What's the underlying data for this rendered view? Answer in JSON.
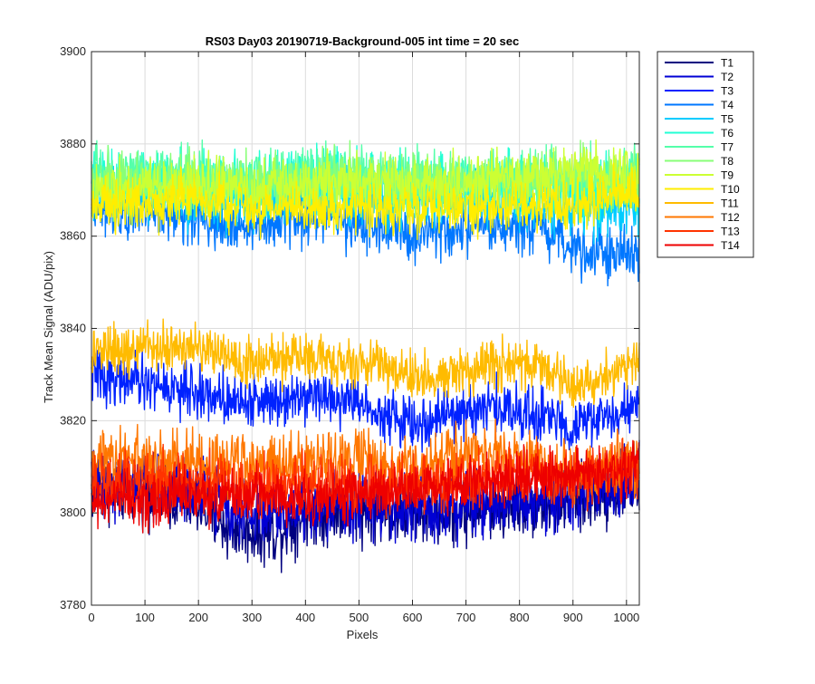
{
  "chart_data": {
    "type": "line",
    "title": "RS03 Day03 20190719-Background-005 int time = 20 sec",
    "xlabel": "Pixels",
    "ylabel": "Track Mean Signal (ADU/pix)",
    "xlim": [
      0,
      1024
    ],
    "ylim": [
      3780,
      3900
    ],
    "xticks": [
      0,
      100,
      200,
      300,
      400,
      500,
      600,
      700,
      800,
      900,
      1000
    ],
    "yticks": [
      3780,
      3800,
      3820,
      3840,
      3860,
      3880,
      3900
    ],
    "grid": true,
    "legend_position": "outside-top-right",
    "series": [
      {
        "name": "T1",
        "color": "#00007f",
        "noise": 3.5,
        "x": [
          0,
          100,
          200,
          250,
          300,
          350,
          400,
          500,
          600,
          700,
          800,
          900,
          1000,
          1024
        ],
        "y": [
          3805,
          3805,
          3802,
          3797,
          3796,
          3796,
          3800,
          3801,
          3800,
          3800,
          3802,
          3802,
          3806,
          3806
        ]
      },
      {
        "name": "T2",
        "color": "#0000d4",
        "noise": 3.5,
        "x": [
          0,
          100,
          200,
          300,
          400,
          500,
          600,
          700,
          800,
          900,
          1000,
          1024
        ],
        "y": [
          3806,
          3806,
          3805,
          3800,
          3801,
          3802,
          3801,
          3802,
          3803,
          3803,
          3807,
          3807
        ]
      },
      {
        "name": "T3",
        "color": "#0022ff",
        "noise": 2.8,
        "x": [
          0,
          100,
          200,
          300,
          400,
          500,
          600,
          700,
          750,
          800,
          900,
          1000,
          1024
        ],
        "y": [
          3830,
          3828,
          3826,
          3824,
          3826,
          3824,
          3819,
          3822,
          3823,
          3822,
          3819,
          3822,
          3823
        ]
      },
      {
        "name": "T4",
        "color": "#0077ff",
        "noise": 3.0,
        "x": [
          0,
          100,
          200,
          300,
          400,
          500,
          600,
          700,
          800,
          900,
          1000,
          1024
        ],
        "y": [
          3867,
          3866,
          3864,
          3862,
          3864,
          3863,
          3860,
          3861,
          3862,
          3858,
          3856,
          3856
        ]
      },
      {
        "name": "T5",
        "color": "#00ccff",
        "noise": 3.0,
        "x": [
          0,
          100,
          200,
          300,
          400,
          500,
          600,
          700,
          800,
          900,
          1000,
          1024
        ],
        "y": [
          3869,
          3869,
          3868,
          3867,
          3869,
          3868,
          3867,
          3868,
          3868,
          3866,
          3866,
          3866
        ]
      },
      {
        "name": "T6",
        "color": "#22ffd4",
        "noise": 3.2,
        "x": [
          0,
          100,
          200,
          300,
          400,
          500,
          600,
          700,
          800,
          900,
          1000,
          1024
        ],
        "y": [
          3872,
          3873,
          3872,
          3871,
          3873,
          3872,
          3871,
          3872,
          3872,
          3871,
          3871,
          3871
        ]
      },
      {
        "name": "T7",
        "color": "#55ffaa",
        "noise": 3.2,
        "x": [
          0,
          100,
          200,
          300,
          400,
          500,
          600,
          700,
          800,
          900,
          1000,
          1024
        ],
        "y": [
          3873,
          3873,
          3872,
          3872,
          3873,
          3872,
          3872,
          3872,
          3872,
          3872,
          3873,
          3873
        ]
      },
      {
        "name": "T8",
        "color": "#88ff77",
        "noise": 3.2,
        "x": [
          0,
          100,
          200,
          300,
          400,
          500,
          600,
          700,
          800,
          900,
          1000,
          1024
        ],
        "y": [
          3871,
          3872,
          3871,
          3871,
          3872,
          3872,
          3871,
          3871,
          3872,
          3872,
          3872,
          3872
        ]
      },
      {
        "name": "T9",
        "color": "#ccff33",
        "noise": 3.0,
        "x": [
          0,
          100,
          200,
          300,
          400,
          500,
          600,
          700,
          800,
          900,
          1000,
          1024
        ],
        "y": [
          3870,
          3871,
          3871,
          3870,
          3871,
          3872,
          3871,
          3872,
          3873,
          3874,
          3874,
          3874
        ]
      },
      {
        "name": "T10",
        "color": "#ffee00",
        "noise": 2.6,
        "x": [
          0,
          100,
          200,
          300,
          400,
          500,
          600,
          700,
          800,
          900,
          1000,
          1024
        ],
        "y": [
          3866,
          3867,
          3868,
          3866,
          3866,
          3866,
          3866,
          3866,
          3866,
          3867,
          3869,
          3869
        ]
      },
      {
        "name": "T11",
        "color": "#ffbb00",
        "noise": 2.6,
        "x": [
          0,
          100,
          200,
          300,
          400,
          500,
          600,
          650,
          700,
          800,
          850,
          900,
          1000,
          1024
        ],
        "y": [
          3834,
          3836,
          3836,
          3833,
          3834,
          3833,
          3830,
          3829,
          3831,
          3833,
          3831,
          3827,
          3832,
          3834
        ]
      },
      {
        "name": "T12",
        "color": "#ff7700",
        "noise": 3.0,
        "x": [
          0,
          100,
          200,
          300,
          400,
          500,
          600,
          700,
          800,
          900,
          1000,
          1024
        ],
        "y": [
          3812,
          3812,
          3812,
          3810,
          3811,
          3811,
          3809,
          3813,
          3812,
          3808,
          3811,
          3811
        ]
      },
      {
        "name": "T13",
        "color": "#ff3300",
        "noise": 3.0,
        "x": [
          0,
          100,
          200,
          300,
          400,
          500,
          600,
          700,
          800,
          900,
          1000,
          1024
        ],
        "y": [
          3806,
          3807,
          3807,
          3806,
          3806,
          3806,
          3806,
          3808,
          3808,
          3807,
          3810,
          3810
        ]
      },
      {
        "name": "T14",
        "color": "#ee0000",
        "noise": 2.8,
        "x": [
          0,
          100,
          200,
          300,
          400,
          500,
          600,
          700,
          800,
          900,
          1000,
          1024
        ],
        "y": [
          3802,
          3803,
          3804,
          3804,
          3803,
          3804,
          3805,
          3807,
          3808,
          3808,
          3810,
          3811
        ]
      }
    ]
  }
}
